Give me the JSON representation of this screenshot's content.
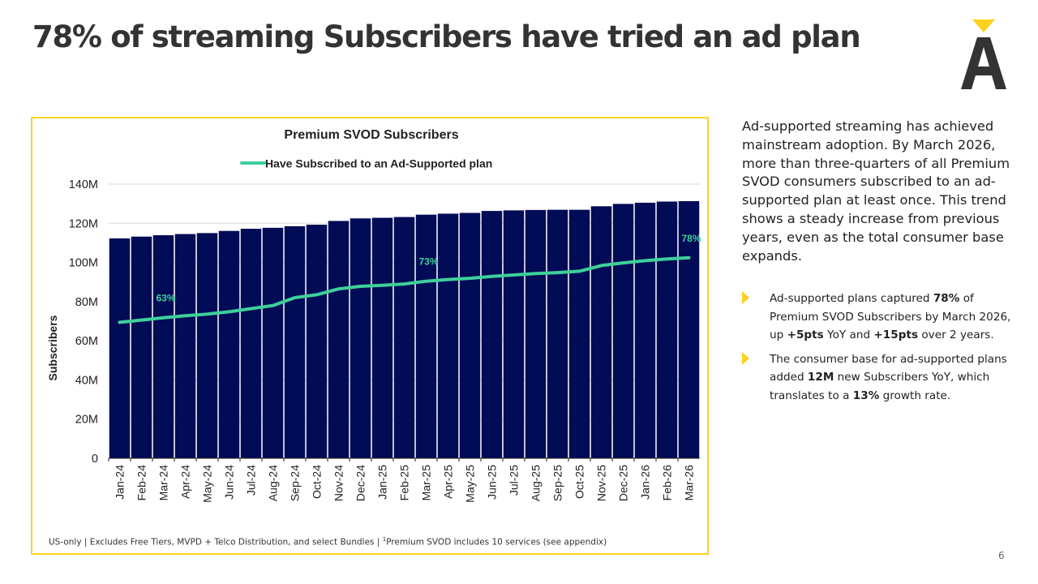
{
  "slide": {
    "title": "78% of streaming Subscribers have tried an ad plan",
    "page_number": "6"
  },
  "logo": {
    "name": "a-logo-icon",
    "accent": "#FFD21F",
    "color": "#333333"
  },
  "colors": {
    "bar": "#020B55",
    "line": "#3DD09A",
    "border": "#FFD21F",
    "text": "#222222"
  },
  "chart_data": {
    "type": "bar",
    "title": "Premium SVOD Subscribers",
    "ylabel": "Subscribers",
    "xlabel": "",
    "ylim": [
      0,
      140
    ],
    "yticks": [
      0,
      20,
      40,
      60,
      80,
      100,
      120,
      140
    ],
    "ytick_labels": [
      "0",
      "20M",
      "40M",
      "60M",
      "80M",
      "100M",
      "120M",
      "140M"
    ],
    "grid": true,
    "legend": "top-center",
    "categories": [
      "Jan-24",
      "Feb-24",
      "Mar-24",
      "Apr-24",
      "May-24",
      "Jun-24",
      "Jul-24",
      "Aug-24",
      "Sep-24",
      "Oct-24",
      "Nov-24",
      "Dec-24",
      "Jan-25",
      "Feb-25",
      "Mar-25",
      "Apr-25",
      "May-25",
      "Jun-25",
      "Jul-25",
      "Aug-25",
      "Sep-25",
      "Oct-25",
      "Nov-25",
      "Dec-25",
      "Jan-26",
      "Feb-26",
      "Mar-26"
    ],
    "series": [
      {
        "type": "bar",
        "values": [
          112.3,
          113.2,
          113.9,
          114.5,
          115.0,
          116.1,
          117.2,
          117.7,
          118.5,
          119.3,
          121.2,
          122.5,
          122.8,
          123.2,
          124.4,
          124.9,
          125.3,
          126.3,
          126.6,
          126.8,
          126.9,
          126.9,
          128.7,
          129.9,
          130.5,
          131.1,
          131.3
        ]
      },
      {
        "name": "Have Subscribed to an Ad-Supported plan",
        "type": "line",
        "values": [
          69.4,
          70.6,
          71.8,
          72.8,
          73.6,
          74.8,
          76.4,
          78.0,
          82.0,
          83.5,
          86.5,
          87.8,
          88.3,
          89.0,
          90.4,
          91.3,
          91.9,
          92.9,
          93.6,
          94.3,
          94.8,
          95.5,
          98.4,
          99.8,
          100.9,
          101.8,
          102.4
        ],
        "data_labels": [
          {
            "category": "Mar-24",
            "text": "63%"
          },
          {
            "category": "Mar-25",
            "text": "73%"
          },
          {
            "category": "Mar-26",
            "text": "78%"
          }
        ]
      }
    ]
  },
  "footnote": {
    "before": "US-only | Excludes Free Tiers, MVPD + Telco Distribution, and select Bundles | ",
    "sup": "1",
    "after": "Premium SVOD includes 10 services (see appendix)"
  },
  "intro": "Ad-supported streaming has achieved mainstream adoption. By March 2026, more than three-quarters of all Premium SVOD consumers subscribed to an ad-supported plan at least once. This trend shows a steady increase from previous years, even as the total consumer base expands.",
  "bullets": [
    {
      "t1": "Ad-supported plans captured ",
      "b1": "78%",
      "t2": " of Premium SVOD Subscribers by March 2026, up ",
      "b2": "+5pts",
      "t3": " YoY and ",
      "b3": "+15pts",
      "t4": " over 2 years."
    },
    {
      "t1": "The consumer base for ad-supported plans added ",
      "b1": "12M",
      "t2": " new Subscribers YoY, which translates to a ",
      "b2": "13%",
      "t3": " growth rate.",
      "b3": "",
      "t4": ""
    }
  ]
}
